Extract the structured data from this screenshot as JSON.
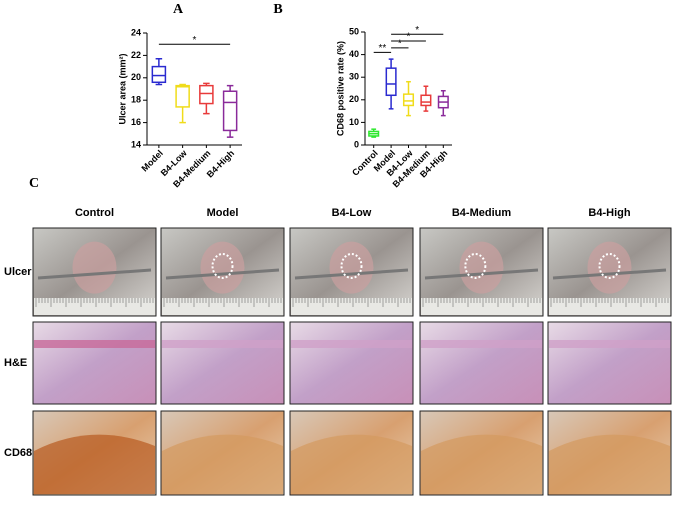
{
  "chart_data": [
    {
      "type": "box",
      "panel": "A",
      "ylabel": "Ulcer area (mm²)",
      "categories": [
        "Model",
        "B4-Low",
        "B4-Medium",
        "B4-High"
      ],
      "colors": [
        "#2a2ad0",
        "#f0dc1a",
        "#e83a3a",
        "#8a2a9a"
      ],
      "boxes": [
        {
          "min": 19.4,
          "q1": 19.6,
          "median": 20.2,
          "q3": 21.0,
          "max": 21.7
        },
        {
          "min": 16.0,
          "q1": 17.4,
          "median": 19.2,
          "q3": 19.3,
          "max": 19.4
        },
        {
          "min": 16.8,
          "q1": 17.7,
          "median": 18.6,
          "q3": 19.3,
          "max": 19.5
        },
        {
          "min": 14.7,
          "q1": 15.3,
          "median": 17.8,
          "q3": 18.8,
          "max": 19.3
        }
      ],
      "ylim": [
        14,
        24
      ],
      "yticks": [
        14,
        16,
        18,
        20,
        22,
        24
      ],
      "annotations": [
        {
          "label": "*",
          "from": "Model",
          "to": "B4-High",
          "y": 23
        }
      ]
    },
    {
      "type": "box",
      "panel": "B",
      "ylabel": "CD68 positive rate (%)",
      "categories": [
        "Control",
        "Model",
        "B4-Low",
        "B4-Medium",
        "B4-High"
      ],
      "colors": [
        "#2ee82e",
        "#2a2ad0",
        "#f0dc1a",
        "#e83a3a",
        "#8a2a9a"
      ],
      "boxes": [
        {
          "min": 3.5,
          "q1": 4,
          "median": 5,
          "q3": 6,
          "max": 7
        },
        {
          "min": 16,
          "q1": 22,
          "median": 27,
          "q3": 34,
          "max": 38
        },
        {
          "min": 13,
          "q1": 17.5,
          "median": 19.5,
          "q3": 22.5,
          "max": 28
        },
        {
          "min": 15,
          "q1": 17.5,
          "median": 19,
          "q3": 22,
          "max": 26
        },
        {
          "min": 13,
          "q1": 16.5,
          "median": 19,
          "q3": 21.5,
          "max": 24
        }
      ],
      "ylim": [
        0,
        50
      ],
      "yticks": [
        0,
        10,
        20,
        30,
        40,
        50
      ],
      "annotations": [
        {
          "label": "**",
          "from": "Control",
          "to": "Model",
          "y": 41
        },
        {
          "label": "*",
          "from": "Model",
          "to": "B4-Low",
          "y": 43
        },
        {
          "label": "*",
          "from": "Model",
          "to": "B4-Medium",
          "y": 46
        },
        {
          "label": "*",
          "from": "Model",
          "to": "B4-High",
          "y": 49
        }
      ]
    }
  ],
  "grid": {
    "panel": "C",
    "columns": [
      "Control",
      "Model",
      "B4-Low",
      "B4-Medium",
      "B4-High"
    ],
    "rows": [
      "Ulcer",
      "H&E",
      "CD68"
    ]
  }
}
